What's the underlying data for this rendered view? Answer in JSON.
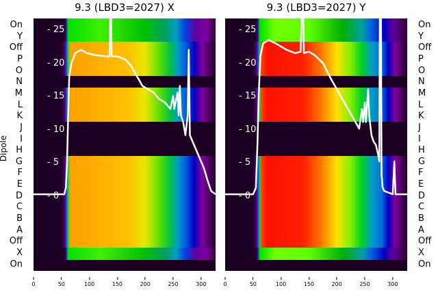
{
  "panels": [
    {
      "title": "9.3 (LBD3=2027) X"
    },
    {
      "title": "9.3 (LBD3=2027) Y"
    }
  ],
  "ylabel": "Dipole",
  "row_labels": [
    "On",
    "Y",
    "Off",
    "P",
    "O",
    "N",
    "M",
    "L",
    "K",
    "J",
    "I",
    "H",
    "G",
    "F",
    "E",
    "D",
    "C",
    "B",
    "A",
    "Off",
    "X",
    "On"
  ],
  "yticks": [
    "25",
    "20",
    "15",
    "10",
    "5",
    "0"
  ],
  "xticks": [
    "0",
    "50",
    "100",
    "150",
    "200",
    "250",
    "300"
  ],
  "colors": {
    "line": "#ffffff",
    "background": "#1c0022"
  },
  "chart_data": [
    {
      "type": "heatmap",
      "title": "9.3 (LBD3=2027) X",
      "xlim": [
        0,
        326
      ],
      "ylim": [
        -12,
        27
      ],
      "line": [
        [
          0,
          0
        ],
        [
          55,
          0
        ],
        [
          58,
          1
        ],
        [
          60,
          5
        ],
        [
          62,
          12
        ],
        [
          64,
          18
        ],
        [
          68,
          20
        ],
        [
          75,
          21.5
        ],
        [
          85,
          22
        ],
        [
          95,
          21.5
        ],
        [
          110,
          21.2
        ],
        [
          130,
          21
        ],
        [
          136,
          21
        ],
        [
          137,
          28
        ],
        [
          139,
          28
        ],
        [
          140,
          21
        ],
        [
          150,
          21
        ],
        [
          165,
          20.5
        ],
        [
          175,
          19.5
        ],
        [
          185,
          18
        ],
        [
          195,
          16.5
        ],
        [
          205,
          16
        ],
        [
          215,
          15.5
        ],
        [
          225,
          14.5
        ],
        [
          235,
          14
        ],
        [
          245,
          13
        ],
        [
          250,
          15
        ],
        [
          252,
          13
        ],
        [
          258,
          15.5
        ],
        [
          260,
          12
        ],
        [
          262,
          16.5
        ],
        [
          264,
          12
        ],
        [
          268,
          11
        ],
        [
          272,
          9
        ],
        [
          276,
          12
        ],
        [
          278,
          22
        ],
        [
          280,
          9
        ],
        [
          285,
          8
        ],
        [
          295,
          6
        ],
        [
          305,
          4
        ],
        [
          312,
          2
        ],
        [
          318,
          0.5
        ],
        [
          326,
          0
        ]
      ]
    },
    {
      "type": "heatmap",
      "title": "9.3 (LBD3=2027) Y",
      "xlim": [
        0,
        326
      ],
      "ylim": [
        -12,
        27
      ],
      "line": [
        [
          0,
          0
        ],
        [
          50,
          0
        ],
        [
          55,
          1
        ],
        [
          58,
          8
        ],
        [
          60,
          15
        ],
        [
          63,
          21
        ],
        [
          68,
          23
        ],
        [
          78,
          23.5
        ],
        [
          90,
          23
        ],
        [
          100,
          22.5
        ],
        [
          110,
          22
        ],
        [
          125,
          21.5
        ],
        [
          135,
          21.7
        ],
        [
          137,
          28
        ],
        [
          140,
          28
        ],
        [
          141,
          21.5
        ],
        [
          150,
          21.7
        ],
        [
          160,
          21.2
        ],
        [
          175,
          20
        ],
        [
          190,
          17.5
        ],
        [
          200,
          16
        ],
        [
          210,
          14.5
        ],
        [
          220,
          13
        ],
        [
          230,
          11.5
        ],
        [
          240,
          10
        ],
        [
          245,
          13
        ],
        [
          247,
          11
        ],
        [
          250,
          14
        ],
        [
          252,
          11
        ],
        [
          256,
          16
        ],
        [
          258,
          12
        ],
        [
          262,
          9
        ],
        [
          266,
          8
        ],
        [
          270,
          7.5
        ],
        [
          274,
          6
        ],
        [
          276,
          5
        ],
        [
          277,
          28
        ],
        [
          279,
          28
        ],
        [
          280,
          3
        ],
        [
          282,
          1
        ],
        [
          285,
          0.5
        ],
        [
          300,
          0
        ],
        [
          303,
          5
        ],
        [
          305,
          0
        ],
        [
          326,
          0
        ]
      ]
    }
  ]
}
